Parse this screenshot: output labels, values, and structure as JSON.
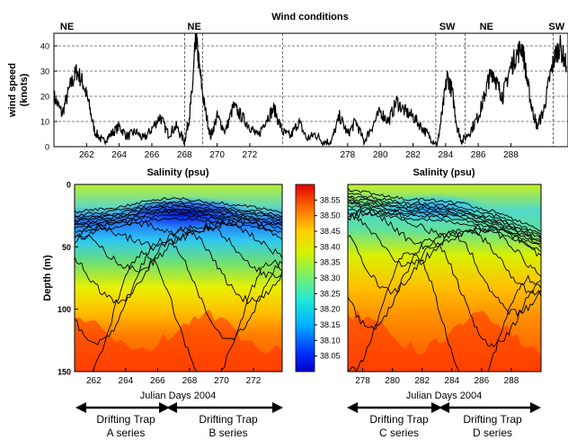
{
  "chart_data": [
    {
      "type": "line",
      "title": "Wind conditions",
      "xlabel": "",
      "ylabel": "wind speed (knots)",
      "xlim": [
        260,
        291.5
      ],
      "ylim": [
        0,
        45
      ],
      "x_ticks": [
        262,
        264,
        266,
        268,
        270,
        272,
        278,
        280,
        282,
        284,
        286,
        288
      ],
      "y_ticks": [
        0,
        10,
        20,
        30,
        40
      ],
      "grid": true,
      "wind_direction_labels": [
        {
          "text": "NE",
          "x": 260.8
        },
        {
          "text": "NE",
          "x": 268.6
        },
        {
          "text": "SW",
          "x": 284.1
        },
        {
          "text": "NE",
          "x": 286.5
        },
        {
          "text": "SW",
          "x": 290.8
        }
      ],
      "series": [
        {
          "x": [
            260.0,
            260.5,
            261.0,
            261.4,
            261.8,
            262.1,
            262.5,
            263.0,
            263.5,
            264.0,
            264.5,
            265.0,
            265.5,
            266.0,
            266.5,
            267.0,
            267.5,
            268.0,
            268.3,
            268.5,
            268.7,
            268.9,
            269.2,
            269.6,
            270.0,
            270.5,
            271.0,
            271.5,
            272.0,
            272.5,
            273.0,
            273.5,
            274.0,
            274.5,
            275.0,
            275.5,
            276.0,
            276.5,
            277.0,
            277.5,
            278.0,
            278.5,
            279.0,
            279.5,
            280.0,
            280.5,
            281.0,
            281.5,
            282.0,
            282.5,
            283.0,
            283.5,
            283.8,
            284.1,
            284.4,
            284.7,
            285.0,
            285.5,
            286.0,
            286.3,
            286.6,
            286.9,
            287.2,
            287.5,
            287.9,
            288.3,
            288.7,
            289.0,
            289.3,
            289.6,
            290.0,
            290.4,
            290.7,
            291.0,
            291.4
          ],
          "values": [
            20,
            13,
            24,
            30,
            25,
            18,
            6,
            2,
            5,
            8,
            4,
            6,
            3,
            7,
            12,
            5,
            8,
            2,
            12,
            24,
            44,
            32,
            17,
            4,
            12,
            6,
            16,
            12,
            8,
            4,
            11,
            15,
            6,
            4,
            10,
            3,
            5,
            2,
            2,
            12,
            5,
            10,
            2,
            8,
            14,
            10,
            18,
            14,
            12,
            8,
            4,
            1,
            14,
            28,
            22,
            8,
            2,
            6,
            12,
            18,
            26,
            30,
            24,
            20,
            30,
            36,
            40,
            26,
            15,
            8,
            14,
            28,
            36,
            40,
            32
          ]
        }
      ]
    },
    {
      "type": "heatmap",
      "title": "Salinity (psu)",
      "xlabel": "Julian Days 2004",
      "ylabel": "Depth (m)",
      "xlim": [
        260.8,
        273.8
      ],
      "ylim": [
        150,
        0
      ],
      "x_ticks": [
        262,
        264,
        266,
        268,
        270,
        272
      ],
      "y_ticks": [
        0,
        50,
        100,
        150
      ],
      "colorbar": {
        "min": 38.0,
        "max": 38.6,
        "ticks": [
          38.05,
          38.1,
          38.15,
          38.2,
          38.25,
          38.3,
          38.35,
          38.4,
          38.45,
          38.5,
          38.55
        ]
      },
      "thermocline_depth": {
        "x": [
          260.8,
          262,
          263,
          264,
          265,
          266,
          267,
          268,
          269,
          270,
          271,
          272,
          273,
          273.8
        ],
        "values": [
          30,
          28,
          27,
          25,
          22,
          20,
          19,
          20,
          22,
          23,
          25,
          26,
          28,
          30
        ]
      }
    },
    {
      "type": "heatmap",
      "title": "Salinity (psu)",
      "xlabel": "Julian Days 2004",
      "ylabel": "",
      "xlim": [
        277,
        290
      ],
      "ylim": [
        150,
        0
      ],
      "x_ticks": [
        278,
        280,
        282,
        284,
        286,
        288
      ],
      "y_ticks": [],
      "thermocline_depth": {
        "x": [
          277,
          278,
          279,
          280,
          281,
          282,
          283,
          284,
          285,
          286,
          287,
          288,
          289,
          290
        ],
        "values": [
          12,
          14,
          16,
          18,
          20,
          20,
          21,
          22,
          24,
          28,
          30,
          35,
          40,
          45
        ]
      }
    }
  ],
  "series_labels": [
    {
      "line1": "Drifting Trap",
      "line2": "A series"
    },
    {
      "line1": "Drifting Trap",
      "line2": "B series"
    },
    {
      "line1": "Drifting Trap",
      "line2": "C series"
    },
    {
      "line1": "Drifting Trap",
      "line2": "D series"
    }
  ],
  "colors": {
    "axis": "#000000",
    "grid": "#000000",
    "line": "#000000",
    "salinity_low": "#0000c8",
    "salinity_mid": "#ffff00",
    "salinity_high": "#ff2000"
  }
}
